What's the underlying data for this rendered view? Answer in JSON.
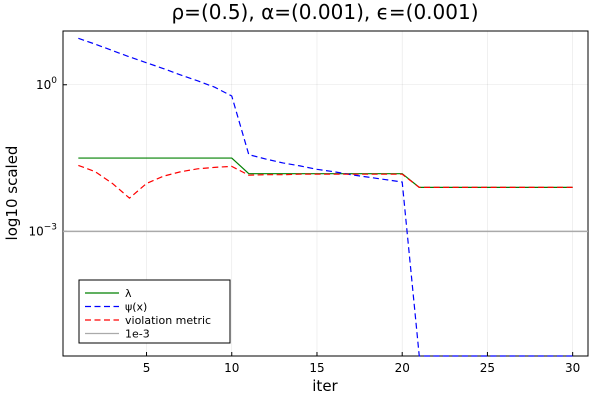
{
  "chart_data": {
    "type": "line",
    "title": "ρ=(0.5), α=(0.001), ϵ=(0.001)",
    "xlabel": "iter",
    "ylabel": "log10 scaled",
    "yscale": "log10",
    "xlim": [
      0.1,
      30.9
    ],
    "ylim_log10": [
      -5.55,
      1.1
    ],
    "x_ticks": [
      5,
      10,
      15,
      20,
      25,
      30
    ],
    "y_ticks": [
      {
        "value_log10": 0,
        "base": "10",
        "exp": "0"
      },
      {
        "value_log10": -3,
        "base": "10",
        "exp": "−3"
      }
    ],
    "grid": true,
    "legend_position": "bottom-left",
    "x": [
      1,
      2,
      3,
      4,
      5,
      6,
      7,
      8,
      9,
      10,
      11,
      12,
      13,
      14,
      15,
      16,
      17,
      18,
      19,
      20,
      21,
      22,
      23,
      24,
      25,
      26,
      27,
      28,
      29,
      30
    ],
    "series": [
      {
        "name": "λ",
        "color": "#008000",
        "dash": "solid",
        "log10_values": [
          -1.5,
          -1.5,
          -1.5,
          -1.5,
          -1.5,
          -1.5,
          -1.5,
          -1.5,
          -1.5,
          -1.5,
          -1.82,
          -1.82,
          -1.82,
          -1.82,
          -1.82,
          -1.82,
          -1.82,
          -1.82,
          -1.82,
          -1.82,
          -2.1,
          -2.1,
          -2.1,
          -2.1,
          -2.1,
          -2.1,
          -2.1,
          -2.1,
          -2.1,
          -2.1
        ]
      },
      {
        "name": "ψ(x)",
        "color": "#0000ff",
        "dash": "dashed",
        "log10_values": [
          0.95,
          0.83,
          0.7,
          0.57,
          0.45,
          0.33,
          0.2,
          0.08,
          -0.05,
          -0.23,
          -1.43,
          -1.52,
          -1.6,
          -1.66,
          -1.73,
          -1.78,
          -1.84,
          -1.89,
          -1.94,
          -1.99,
          -5.55,
          -5.55,
          -5.55,
          -5.55,
          -5.55,
          -5.55,
          -5.55,
          -5.55,
          -5.55,
          -5.55
        ]
      },
      {
        "name": "violation metric",
        "color": "#ff0000",
        "dash": "dashed",
        "log10_values": [
          -1.65,
          -1.78,
          -2.02,
          -2.32,
          -2.02,
          -1.87,
          -1.78,
          -1.72,
          -1.69,
          -1.67,
          -1.85,
          -1.84,
          -1.84,
          -1.83,
          -1.83,
          -1.83,
          -1.83,
          -1.83,
          -1.83,
          -1.83,
          -2.1,
          -2.1,
          -2.1,
          -2.1,
          -2.1,
          -2.1,
          -2.1,
          -2.1,
          -2.1,
          -2.1
        ]
      },
      {
        "name": "1e-3",
        "color": "#aaaaaa",
        "dash": "solid",
        "log10_values": [
          -3,
          -3,
          -3,
          -3,
          -3,
          -3,
          -3,
          -3,
          -3,
          -3,
          -3,
          -3,
          -3,
          -3,
          -3,
          -3,
          -3,
          -3,
          -3,
          -3,
          -3,
          -3,
          -3,
          -3,
          -3,
          -3,
          -3,
          -3,
          -3,
          -3
        ],
        "span_full_width": true
      }
    ]
  }
}
